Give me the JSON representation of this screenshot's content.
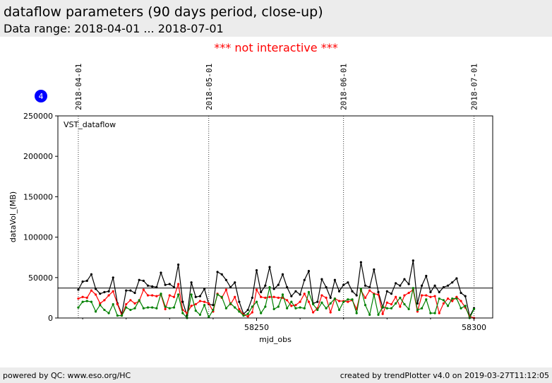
{
  "header": {
    "title": "dataflow parameters (90 days period, close-up)",
    "subtitle": "Data range: 2018-04-01 ... 2018-07-01"
  },
  "notice": "*** not interactive ***",
  "badge": "4",
  "footer": {
    "left": "powered by QC: www.eso.org/HC",
    "right": "created by trendPlotter v4.0 on 2019-03-27T11:12:05"
  },
  "colors": {
    "black": "#000000",
    "red": "#ff0000",
    "green": "#008000",
    "notice": "#ff0000",
    "badge": "#0000ff"
  },
  "chart_data": {
    "type": "line",
    "panel_label": "VST_dataflow",
    "xlabel": "mjd_obs",
    "ylabel": "dataVol_(MB)",
    "xlim": [
      58204.3,
      58304.3
    ],
    "ylim": [
      0,
      250000
    ],
    "x_ticks": [
      58250,
      58300
    ],
    "y_ticks": [
      0,
      50000,
      100000,
      150000,
      200000,
      250000
    ],
    "grid": false,
    "date_markers": [
      {
        "label": "2018-04-01",
        "x": 58209
      },
      {
        "label": "2018-05-01",
        "x": 58239
      },
      {
        "label": "2018-06-01",
        "x": 58270
      },
      {
        "label": "2018-07-01",
        "x": 58300
      }
    ],
    "reference_line": 37000,
    "x": [
      58209,
      58210,
      58211,
      58212,
      58213,
      58214,
      58215,
      58216,
      58217,
      58218,
      58219,
      58220,
      58221,
      58222,
      58223,
      58224,
      58225,
      58226,
      58227,
      58228,
      58229,
      58230,
      58231,
      58232,
      58233,
      58234,
      58235,
      58236,
      58237,
      58238,
      58239,
      58240,
      58241,
      58242,
      58243,
      58244,
      58245,
      58246,
      58247,
      58248,
      58249,
      58250,
      58251,
      58252,
      58253,
      58254,
      58255,
      58256,
      58257,
      58258,
      58259,
      58260,
      58261,
      58262,
      58263,
      58264,
      58265,
      58266,
      58267,
      58268,
      58269,
      58270,
      58271,
      58272,
      58273,
      58274,
      58275,
      58276,
      58277,
      58278,
      58279,
      58280,
      58281,
      58282,
      58283,
      58284,
      58285,
      58286,
      58287,
      58288,
      58289,
      58290,
      58291,
      58292,
      58293,
      58294,
      58295,
      58296,
      58297,
      58298,
      58299,
      58300
    ],
    "series": [
      {
        "color": "#000000",
        "values": [
          35000,
          45000,
          46000,
          54000,
          36000,
          30000,
          32000,
          33000,
          50000,
          18000,
          5000,
          34000,
          34000,
          31000,
          47000,
          46000,
          40000,
          39000,
          38000,
          56000,
          41000,
          42000,
          38000,
          66000,
          20000,
          3000,
          44000,
          26000,
          27000,
          36000,
          17000,
          16000,
          57000,
          54000,
          47000,
          38000,
          44000,
          20000,
          5000,
          10000,
          25000,
          59000,
          32000,
          40000,
          63000,
          36000,
          41000,
          54000,
          38000,
          27000,
          33000,
          29000,
          47000,
          58000,
          18000,
          20000,
          48000,
          38000,
          25000,
          47000,
          33000,
          41000,
          44000,
          33000,
          28000,
          69000,
          40000,
          38000,
          60000,
          32000,
          13000,
          33000,
          30000,
          43000,
          40000,
          48000,
          42000,
          71000,
          18000,
          40000,
          52000,
          32000,
          40000,
          32000,
          38000,
          40000,
          44000,
          49000,
          31000,
          27000,
          2000,
          12000
        ]
      },
      {
        "color": "#ff0000",
        "values": [
          24000,
          26000,
          25000,
          34000,
          29000,
          18000,
          22000,
          28000,
          33000,
          17000,
          3000,
          17000,
          22000,
          18000,
          21000,
          35000,
          28000,
          28000,
          27000,
          29000,
          11000,
          28000,
          26000,
          42000,
          10000,
          6000,
          15000,
          17000,
          21000,
          20000,
          18000,
          8000,
          30000,
          25000,
          35000,
          17000,
          26000,
          11000,
          4000,
          2000,
          7000,
          35000,
          26000,
          25000,
          26000,
          26000,
          25000,
          25000,
          22000,
          15000,
          16000,
          20000,
          30000,
          20000,
          7000,
          12000,
          28000,
          25000,
          7000,
          24000,
          21000,
          21000,
          20000,
          22000,
          11000,
          34000,
          25000,
          34000,
          30000,
          29000,
          5000,
          19000,
          17000,
          26000,
          14000,
          28000,
          31000,
          35000,
          8000,
          28000,
          28000,
          26000,
          27000,
          6000,
          18000,
          24000,
          21000,
          26000,
          21000,
          13000,
          2000,
          0
        ]
      },
      {
        "color": "#008000",
        "values": [
          13000,
          20000,
          21000,
          20000,
          8000,
          16000,
          10000,
          6000,
          17000,
          3000,
          3000,
          13000,
          10000,
          12000,
          22000,
          12000,
          13000,
          13000,
          12000,
          30000,
          14000,
          12000,
          13000,
          29000,
          6000,
          0,
          29000,
          9000,
          4000,
          16000,
          1000,
          10000,
          29000,
          26000,
          12000,
          18000,
          13000,
          8000,
          3000,
          5000,
          14000,
          20000,
          6000,
          14000,
          38000,
          11000,
          14000,
          29000,
          12000,
          20000,
          12000,
          13000,
          12000,
          32000,
          17000,
          10000,
          19000,
          12000,
          18000,
          24000,
          10000,
          20000,
          23000,
          23000,
          6000,
          36000,
          16000,
          4000,
          29000,
          4000,
          14000,
          12000,
          12000,
          18000,
          25000,
          17000,
          11000,
          37000,
          10000,
          12000,
          23000,
          6000,
          6000,
          24000,
          22000,
          15000,
          24000,
          24000,
          12000,
          15000,
          0,
          11000
        ]
      }
    ]
  }
}
